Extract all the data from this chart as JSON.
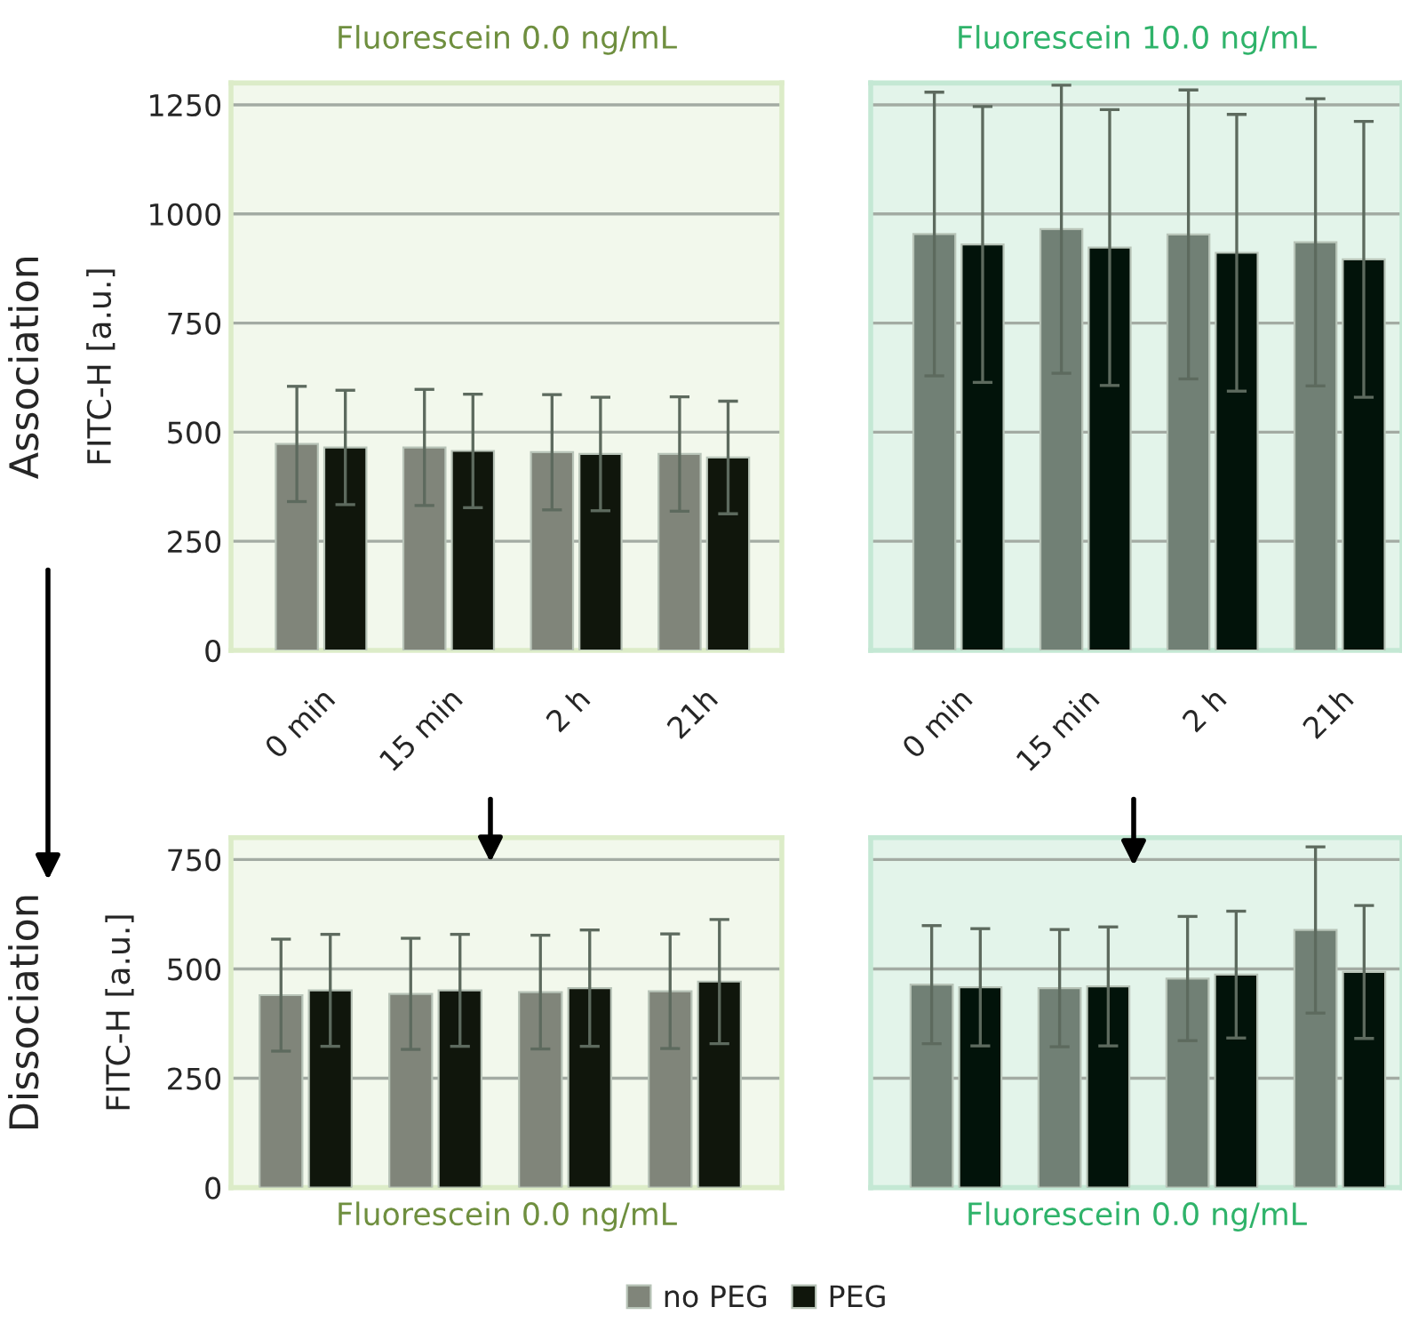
{
  "chart_data": [
    {
      "type": "bar",
      "title": "Fluorescein 0.0 ng/mL",
      "ylabel": "FITC-H [a.u.]",
      "annotations": [
        "Association"
      ],
      "categories": [
        "0 min",
        "15 min",
        "2 h",
        "21h"
      ],
      "ylim": [
        0,
        1300
      ],
      "yticks": [
        0,
        250,
        500,
        750,
        1000,
        1250
      ],
      "grid": "y",
      "series": [
        {
          "color": "#80857a",
          "values": [
            473,
            465,
            454,
            450
          ],
          "errors": [
            132,
            133,
            132,
            131
          ]
        },
        {
          "color": "#10160c",
          "values": [
            465,
            457,
            450,
            442
          ],
          "errors": [
            131,
            130,
            130,
            129
          ]
        }
      ]
    },
    {
      "type": "bar",
      "title": "Fluorescein 10.0 ng/mL",
      "categories": [
        "0 min",
        "15 min",
        "2 h",
        "21h"
      ],
      "ylim": [
        0,
        1300
      ],
      "yticks": [
        0,
        250,
        500,
        750,
        1000,
        1250
      ],
      "grid": "y",
      "tick_labels": "x",
      "series": [
        {
          "color": "#718075",
          "values": [
            954,
            965,
            953,
            935
          ],
          "errors": [
            325,
            330,
            331,
            329
          ]
        },
        {
          "color": "#02130a",
          "values": [
            930,
            923,
            911,
            896
          ],
          "errors": [
            316,
            316,
            317,
            316
          ]
        }
      ]
    },
    {
      "type": "bar",
      "ylabel": "FITC-H [a.u.]",
      "annotations": [
        "Dissociation",
        "Fluorescein 0.0 ng/mL"
      ],
      "categories": [
        null,
        null,
        null,
        null
      ],
      "ylim": [
        0,
        800
      ],
      "yticks": [
        0,
        250,
        500,
        750
      ],
      "grid": "y",
      "tick_labels": "y",
      "legend": "bottom",
      "series": [
        {
          "name": "no PEG",
          "color": "#80857a",
          "values": [
            440,
            443,
            447,
            449
          ],
          "errors": [
            128,
            127,
            130,
            131
          ]
        },
        {
          "name": "PEG",
          "color": "#10160c",
          "values": [
            451,
            451,
            456,
            471
          ],
          "errors": [
            128,
            128,
            133,
            142
          ]
        }
      ]
    },
    {
      "type": "bar",
      "annotations": [
        "Fluorescein 0.0 ng/mL"
      ],
      "categories": [
        null,
        null,
        null,
        null
      ],
      "ylim": [
        0,
        800
      ],
      "yticks": [
        0,
        250,
        500,
        750
      ],
      "grid": "y",
      "tick_labels": false,
      "series": [
        {
          "color": "#718075",
          "values": [
            464,
            456,
            478,
            589
          ],
          "errors": [
            135,
            134,
            142,
            190
          ]
        },
        {
          "color": "#02130a",
          "values": [
            458,
            460,
            487,
            493
          ],
          "errors": [
            134,
            136,
            145,
            152
          ]
        }
      ]
    }
  ]
}
